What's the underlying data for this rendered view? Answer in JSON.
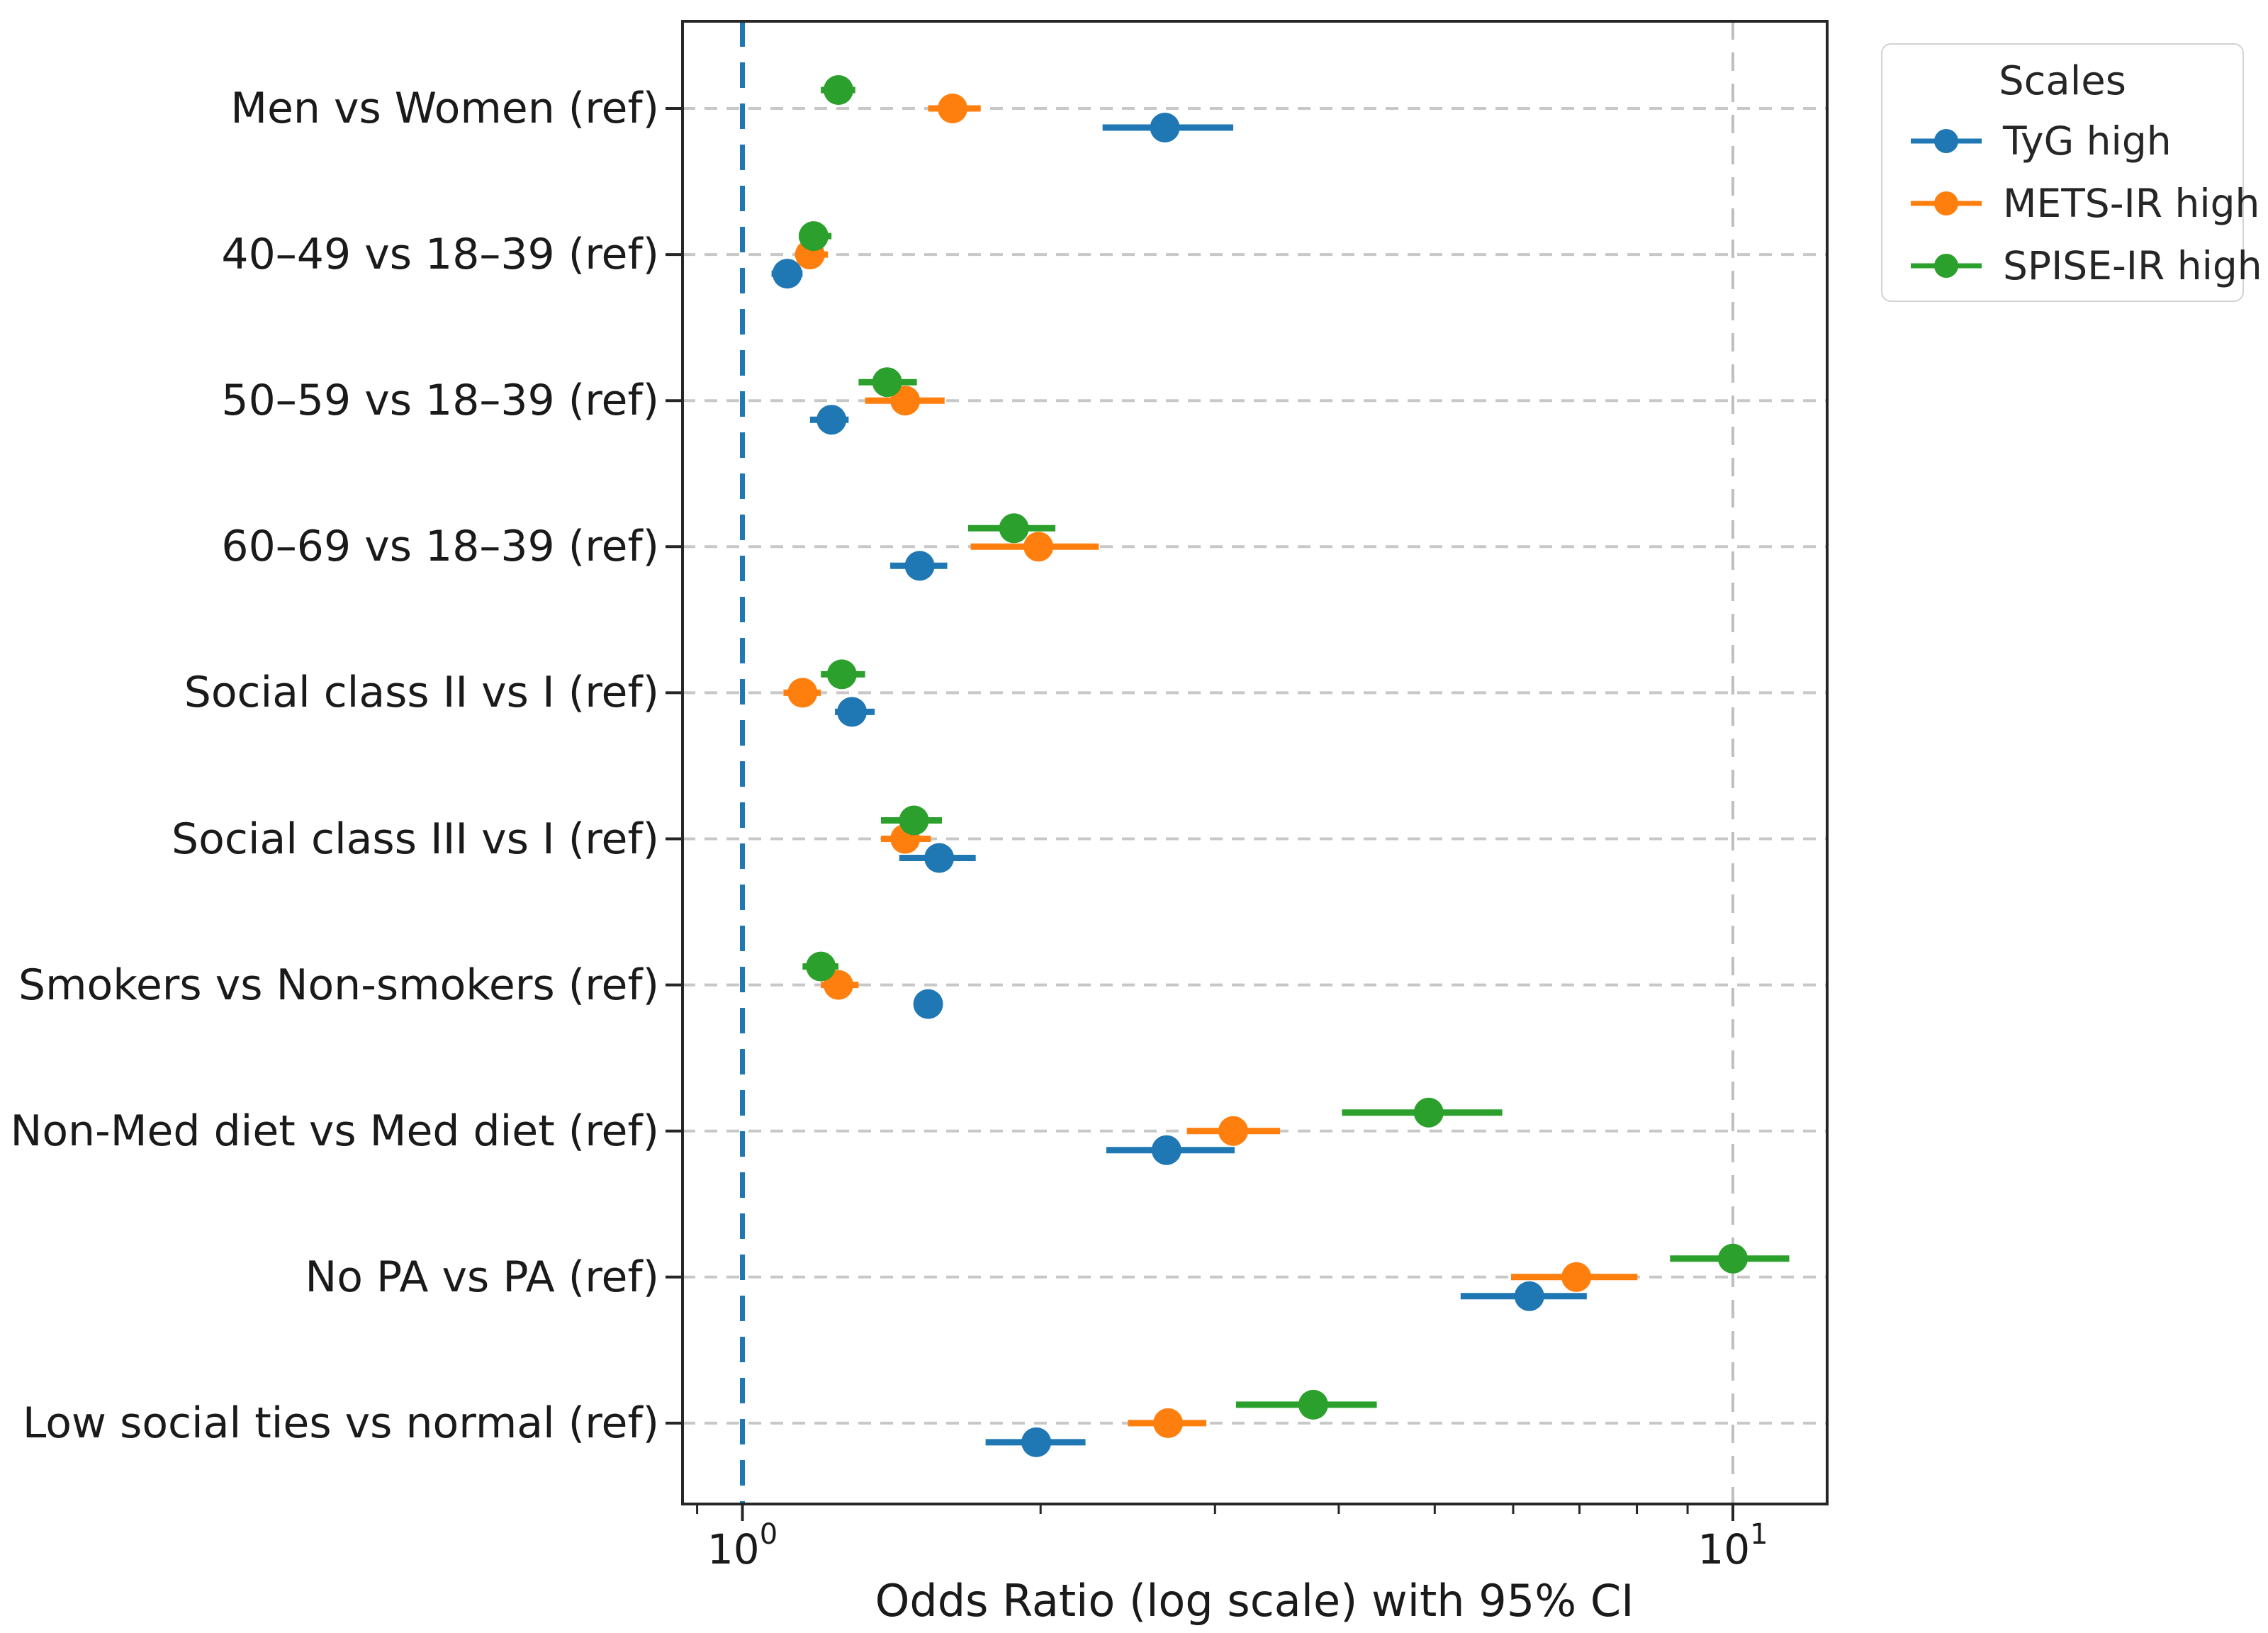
{
  "figure": {
    "background": "#ffffff",
    "spine_color": "#262626",
    "grid_color": "#c8c8c8"
  },
  "x_axis": {
    "scale": "log",
    "ticks": [
      {
        "base": "10",
        "exp": "0",
        "value": 1
      },
      {
        "base": "10",
        "exp": "1",
        "value": 10
      }
    ],
    "minor_tick_values": [
      0.9,
      2,
      3,
      4,
      5,
      6,
      7,
      8,
      9
    ]
  },
  "reference_line": {
    "x": 1.0,
    "color": "#1f77b4",
    "style": "dashed"
  },
  "chart_data": {
    "type": "scatter",
    "subtype": "forest-plot-errorbar",
    "title": "",
    "xlabel": "Odds Ratio (log scale) with 95% CI",
    "ylabel": "",
    "xscale": "log",
    "xlim": [
      0.87,
      12.45
    ],
    "grid": "horizontal dashed at each category; vertical dashed at 10",
    "legend_title": "Scales",
    "legend_position": "upper right, outside axes",
    "categories": [
      "Men vs Women (ref)",
      "40–49 vs 18–39 (ref)",
      "50–59 vs 18–39 (ref)",
      "60–69 vs 18–39 (ref)",
      "Social class II vs I (ref)",
      "Social class III vs I (ref)",
      "Smokers vs Non-smokers (ref)",
      "Non-Med diet vs Med diet (ref)",
      "No PA vs PA (ref)",
      "Low social ties vs normal (ref)"
    ],
    "series": [
      {
        "name": "TyG high",
        "color": "#1f77b4",
        "values": [
          2.67,
          1.11,
          1.23,
          1.51,
          1.29,
          1.58,
          1.54,
          2.68,
          6.23,
          1.98
        ],
        "ci_low": [
          2.31,
          1.07,
          1.17,
          1.41,
          1.24,
          1.44,
          1.49,
          2.33,
          5.31,
          1.76
        ],
        "ci_high": [
          3.13,
          1.15,
          1.28,
          1.61,
          1.36,
          1.72,
          1.59,
          3.14,
          7.12,
          2.22
        ]
      },
      {
        "name": "METS-IR high",
        "color": "#ff7f0e",
        "values": [
          1.63,
          1.17,
          1.46,
          1.99,
          1.15,
          1.46,
          1.25,
          3.13,
          6.95,
          2.69
        ],
        "ci_low": [
          1.54,
          1.13,
          1.33,
          1.7,
          1.1,
          1.38,
          1.2,
          2.81,
          5.97,
          2.45
        ],
        "ci_high": [
          1.74,
          1.22,
          1.6,
          2.29,
          1.2,
          1.55,
          1.31,
          3.49,
          8.01,
          2.94
        ]
      },
      {
        "name": "SPISE-IR high",
        "color": "#2ca02c",
        "values": [
          1.25,
          1.18,
          1.4,
          1.88,
          1.26,
          1.49,
          1.2,
          4.93,
          10.0,
          3.77
        ],
        "ci_low": [
          1.2,
          1.14,
          1.31,
          1.69,
          1.2,
          1.38,
          1.15,
          4.03,
          8.64,
          3.15
        ],
        "ci_high": [
          1.3,
          1.23,
          1.5,
          2.07,
          1.33,
          1.59,
          1.25,
          5.85,
          11.4,
          4.37
        ]
      }
    ]
  }
}
